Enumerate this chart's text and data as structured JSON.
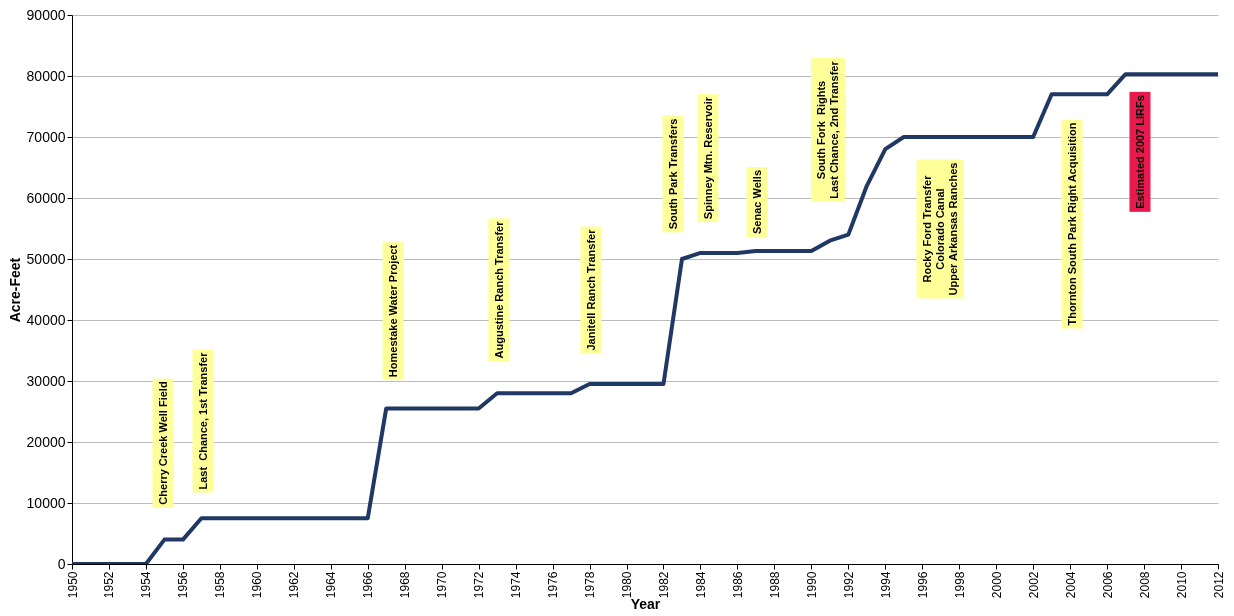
{
  "chart_data": {
    "type": "line",
    "xlabel": "Year",
    "ylabel": "Acre-Feet",
    "x": [
      1950,
      1954,
      1955,
      1956,
      1957,
      1966,
      1967,
      1972,
      1973,
      1977,
      1978,
      1982,
      1983,
      1984,
      1986,
      1987,
      1990,
      1991,
      1992,
      1993,
      1994,
      1995,
      2002,
      2003,
      2006,
      2007,
      2012
    ],
    "values": [
      0,
      0,
      4000,
      4000,
      7500,
      7500,
      25500,
      25500,
      28000,
      28000,
      29500,
      29500,
      50000,
      51000,
      51000,
      51300,
      51300,
      53000,
      54000,
      62000,
      68000,
      70000,
      70000,
      77000,
      77000,
      80300,
      80300
    ],
    "color": "#1f3864",
    "xlim": [
      1950,
      2012
    ],
    "xticks": [
      1950,
      1952,
      1954,
      1956,
      1958,
      1960,
      1962,
      1964,
      1966,
      1968,
      1970,
      1972,
      1974,
      1976,
      1978,
      1980,
      1982,
      1984,
      1986,
      1988,
      1990,
      1992,
      1994,
      1996,
      1998,
      2000,
      2002,
      2004,
      2006,
      2008,
      2010,
      2012
    ],
    "ylim": [
      0,
      90000
    ],
    "yticks": [
      0,
      10000,
      20000,
      30000,
      40000,
      50000,
      60000,
      70000,
      80000,
      90000
    ],
    "grid": "y",
    "annotations": [
      "Cherry Creek Well Field",
      "Last  Chance, 1st Transfer",
      "Homestake Water Project",
      "Augustine Ranch Transfer",
      "Janitell Ranch Transfer",
      "South Park Transfers",
      "Spinney Mtn. Reservoir",
      "Senac Wells",
      "South Fork  Rights\nLast Chance, 2nd Transfer",
      "Rocky Ford Transfer\nColorado Canal\nUpper Arkansas Ranches",
      "Thornton South Park Right Acquisition",
      "Estimated 2007 LIRFs"
    ]
  }
}
